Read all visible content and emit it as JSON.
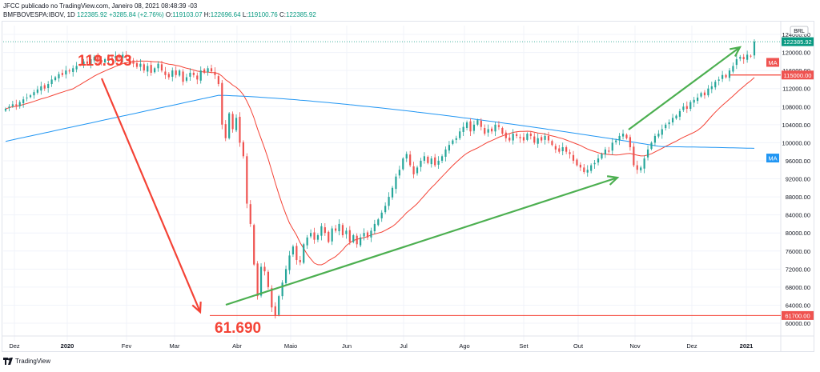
{
  "header": {
    "line1": "JFCC publicado no TradingView.com, Janeiro 08, 2021 08:48:39 -03",
    "symbol": "BMFBOVESPA:IBOV, 1D",
    "last": "122385.92",
    "change": "+3285.84 (+2.76%)",
    "o": "119103.07",
    "h": "122696.64",
    "l": "119100.76",
    "c": "122385.92"
  },
  "footer": {
    "brand": "TradingView"
  },
  "colors": {
    "up": "#26a69a",
    "down": "#ef5350",
    "ma_short": "#f44336",
    "ma_long": "#2196f3",
    "arrow_red": "#f44336",
    "arrow_green": "#4caf50",
    "price_label_red": "#ef5350",
    "price_label_green": "#089981"
  },
  "chart_data": {
    "type": "candlestick",
    "currency_badge": "BRL",
    "y_ticks": [
      "124000.00",
      "120000.00",
      "116000.00",
      "112000.00",
      "108000.00",
      "104000.00",
      "100000.00",
      "96000.00",
      "92000.00",
      "88000.00",
      "84000.00",
      "80000.00",
      "76000.00",
      "72000.00",
      "68000.00",
      "64000.00",
      "60000.00"
    ],
    "ylim": [
      57500,
      128000
    ],
    "x_ticks": [
      "Dez",
      "2020",
      "Fev",
      "Mar",
      "Abr",
      "Maio",
      "Jun",
      "Jul",
      "Ago",
      "Set",
      "Out",
      "Nov",
      "Dez",
      "2021"
    ],
    "price_labels": {
      "last": "122385.92",
      "ma_short_tag": "MA",
      "level_115": "115000.00",
      "ma_long_tag": "MA",
      "level_617": "61700.00"
    },
    "annotations": {
      "high": "119.593",
      "low": "61.690"
    },
    "closes": [
      107500,
      108000,
      108500,
      108200,
      109000,
      109600,
      110000,
      110500,
      111200,
      111800,
      112500,
      112000,
      113000,
      114000,
      114500,
      115200,
      115000,
      116000,
      115800,
      116500,
      117000,
      117200,
      118000,
      117500,
      118500,
      119000,
      118200,
      117800,
      118500,
      119000,
      118500,
      119200,
      118800,
      119500,
      119000,
      118000,
      117500,
      116800,
      117500,
      116000,
      117000,
      115500,
      116500,
      117500,
      116000,
      115000,
      114500,
      116000,
      115000,
      116000,
      113500,
      114500,
      115500,
      115000,
      114000,
      116000,
      115500,
      116500,
      115800,
      115000,
      113000,
      104000,
      101000,
      106500,
      103000,
      105500,
      100000,
      97000,
      86500,
      82000,
      73000,
      66000,
      72500,
      71500,
      68000,
      63500,
      61700,
      66000,
      69000,
      72000,
      75000,
      77000,
      74000,
      73500,
      77500,
      79000,
      80000,
      78500,
      79500,
      81500,
      80000,
      78000,
      81000,
      80500,
      82000,
      79500,
      80500,
      78000,
      79500,
      77500,
      79000,
      80000,
      79000,
      80500,
      82000,
      83000,
      84500,
      86000,
      88000,
      90000,
      92500,
      94000,
      96500,
      97500,
      95000,
      93000,
      94500,
      96000,
      97000,
      95500,
      96500,
      95000,
      96000,
      97000,
      98500,
      99500,
      100500,
      101000,
      102500,
      103500,
      104500,
      102500,
      104000,
      105000,
      103500,
      102000,
      103000,
      102500,
      104000,
      103500,
      102000,
      101000,
      100500,
      102000,
      101500,
      101000,
      100500,
      102000,
      101500,
      100000,
      101000,
      100500,
      101500,
      100500,
      99500,
      98500,
      98000,
      99000,
      98000,
      97500,
      96000,
      95000,
      94500,
      93500,
      94000,
      95000,
      95500,
      96500,
      97500,
      98500,
      98000,
      100000,
      100500,
      101500,
      102000,
      101000,
      99000,
      95000,
      94000,
      94500,
      96500,
      98500,
      100000,
      101500,
      102000,
      103000,
      104000,
      104500,
      105500,
      106000,
      107000,
      108000,
      107500,
      109000,
      109500,
      110000,
      111000,
      110500,
      112000,
      112500,
      113500,
      114000,
      115000,
      114500,
      116000,
      117000,
      118500,
      119000,
      118500,
      119500,
      119100,
      122385
    ]
  }
}
